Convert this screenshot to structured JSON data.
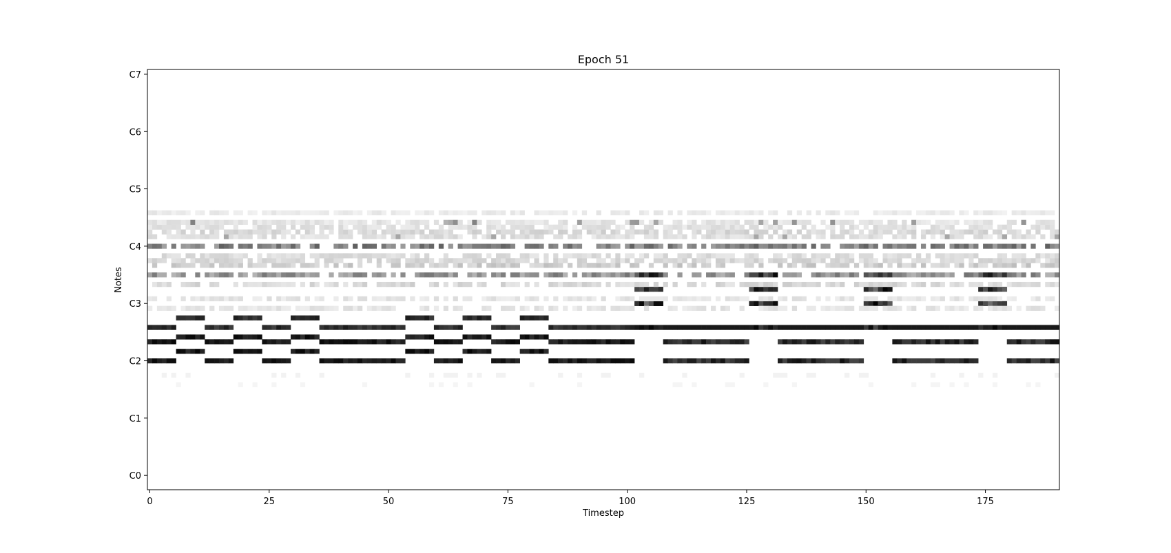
{
  "chart_data": {
    "type": "heatmap",
    "title": "Epoch 51",
    "xlabel": "Timestep",
    "ylabel": "Notes",
    "xlim": [
      -0.5,
      190.5
    ],
    "ylim": [
      -3,
      85
    ],
    "x_ticks": [
      {
        "value": 0,
        "label": "0"
      },
      {
        "value": 25,
        "label": "25"
      },
      {
        "value": 50,
        "label": "50"
      },
      {
        "value": 75,
        "label": "75"
      },
      {
        "value": 100,
        "label": "100"
      },
      {
        "value": 125,
        "label": "125"
      },
      {
        "value": 150,
        "label": "150"
      },
      {
        "value": 175,
        "label": "175"
      }
    ],
    "y_ticks": [
      {
        "value": 0,
        "label": "C0"
      },
      {
        "value": 12,
        "label": "C1"
      },
      {
        "value": 24,
        "label": "C2"
      },
      {
        "value": 36,
        "label": "C3"
      },
      {
        "value": 48,
        "label": "C4"
      },
      {
        "value": 60,
        "label": "C5"
      },
      {
        "value": 72,
        "label": "C6"
      },
      {
        "value": 84,
        "label": "C7"
      }
    ],
    "colormap": "greys",
    "grid": false,
    "phrase_A": [
      {
        "notes": [
          24,
          28,
          31
        ],
        "start": 0,
        "end": 6
      },
      {
        "notes": [
          26,
          29,
          33
        ],
        "start": 6,
        "end": 12
      },
      {
        "notes": [
          24,
          28,
          31
        ],
        "start": 12,
        "end": 18
      },
      {
        "notes": [
          26,
          29,
          33
        ],
        "start": 18,
        "end": 24
      },
      {
        "notes": [
          24,
          28,
          31
        ],
        "start": 24,
        "end": 30
      },
      {
        "notes": [
          26,
          29,
          33
        ],
        "start": 30,
        "end": 36
      },
      {
        "notes": [
          24,
          28,
          31
        ],
        "start": 36,
        "end": 54
      },
      {
        "notes": [
          26,
          29,
          33
        ],
        "start": 54,
        "end": 60
      },
      {
        "notes": [
          24,
          28,
          31
        ],
        "start": 60,
        "end": 66
      },
      {
        "notes": [
          26,
          29,
          33
        ],
        "start": 66,
        "end": 72
      },
      {
        "notes": [
          24,
          28,
          31
        ],
        "start": 72,
        "end": 78
      },
      {
        "notes": [
          26,
          29,
          33
        ],
        "start": 78,
        "end": 84
      },
      {
        "notes": [
          24,
          28,
          31
        ],
        "start": 84,
        "end": 102
      }
    ],
    "phrase_B": [
      {
        "start": 102,
        "end": 108
      },
      {
        "start": 126,
        "end": 132
      },
      {
        "start": 150,
        "end": 156
      },
      {
        "start": 174,
        "end": 180
      }
    ],
    "phrase_B_notes": [
      31,
      36,
      39,
      42
    ],
    "phrase_B_fill": [
      {
        "start": 108,
        "end": 126
      },
      {
        "start": 132,
        "end": 150
      },
      {
        "start": 156,
        "end": 174
      },
      {
        "start": 180,
        "end": 191
      }
    ],
    "phrase_B_fill_notes": [
      24,
      28
    ]
  }
}
